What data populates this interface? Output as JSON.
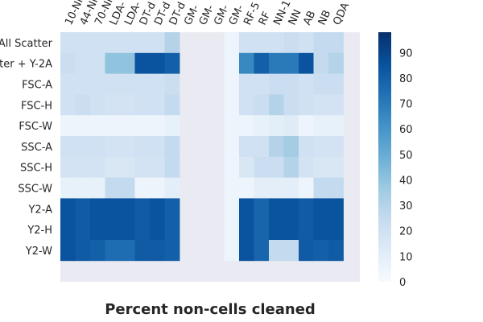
{
  "chart_data": {
    "type": "heatmap",
    "title": "Percent non-cells cleaned",
    "rows": [
      "All Scatter",
      "Scatter + Y-2A",
      "FSC-A",
      "FSC-H",
      "FSC-W",
      "SSC-A",
      "SSC-H",
      "SSC-W",
      "Y2-A",
      "Y2-H",
      "Y2-W"
    ],
    "columns": [
      "10-NN",
      "44-NN",
      "70-NN",
      "LDA-",
      "LDA-",
      "DT-d",
      "DT-d",
      "DT-d",
      "GM-",
      "GM-",
      "GM-",
      "GM-",
      "RF-5",
      "RF",
      "NN-1",
      "NN",
      "AB",
      "NB",
      "QDA"
    ],
    "values": [
      [
        20,
        20,
        20,
        20,
        20,
        20,
        20,
        30,
        null,
        null,
        null,
        5,
        20,
        20,
        20,
        22,
        20,
        25,
        25
      ],
      [
        22,
        20,
        20,
        40,
        40,
        85,
        85,
        80,
        null,
        null,
        null,
        5,
        65,
        80,
        70,
        70,
        85,
        25,
        30
      ],
      [
        20,
        20,
        20,
        20,
        20,
        20,
        20,
        22,
        null,
        null,
        null,
        5,
        20,
        20,
        22,
        22,
        20,
        22,
        22
      ],
      [
        20,
        22,
        20,
        18,
        18,
        20,
        20,
        25,
        null,
        null,
        null,
        5,
        20,
        22,
        30,
        22,
        20,
        18,
        18
      ],
      [
        5,
        5,
        5,
        5,
        5,
        5,
        5,
        8,
        null,
        null,
        null,
        5,
        5,
        8,
        10,
        12,
        5,
        8,
        8
      ],
      [
        20,
        20,
        20,
        18,
        18,
        20,
        20,
        25,
        null,
        null,
        null,
        5,
        20,
        20,
        30,
        35,
        20,
        18,
        18
      ],
      [
        18,
        18,
        18,
        15,
        15,
        18,
        18,
        25,
        null,
        null,
        null,
        5,
        15,
        22,
        22,
        30,
        18,
        15,
        15
      ],
      [
        8,
        8,
        8,
        25,
        25,
        5,
        5,
        10,
        null,
        null,
        null,
        5,
        5,
        10,
        10,
        10,
        5,
        25,
        25
      ],
      [
        85,
        82,
        85,
        85,
        85,
        82,
        85,
        80,
        null,
        null,
        null,
        5,
        85,
        78,
        85,
        85,
        82,
        85,
        85
      ],
      [
        85,
        82,
        85,
        85,
        85,
        82,
        85,
        80,
        null,
        null,
        null,
        5,
        85,
        78,
        85,
        85,
        82,
        85,
        85
      ],
      [
        85,
        82,
        80,
        75,
        75,
        82,
        82,
        80,
        null,
        null,
        null,
        5,
        85,
        78,
        25,
        25,
        82,
        80,
        82
      ]
    ],
    "colorbar": {
      "min": 0,
      "max": 98,
      "ticks": [
        0,
        10,
        20,
        30,
        40,
        50,
        60,
        70,
        80,
        90
      ]
    },
    "colors": {
      "low": "#f7fbff",
      "high": "#08306b",
      "missing": "#eaeaf2"
    },
    "xlabel": "",
    "ylabel": ""
  }
}
